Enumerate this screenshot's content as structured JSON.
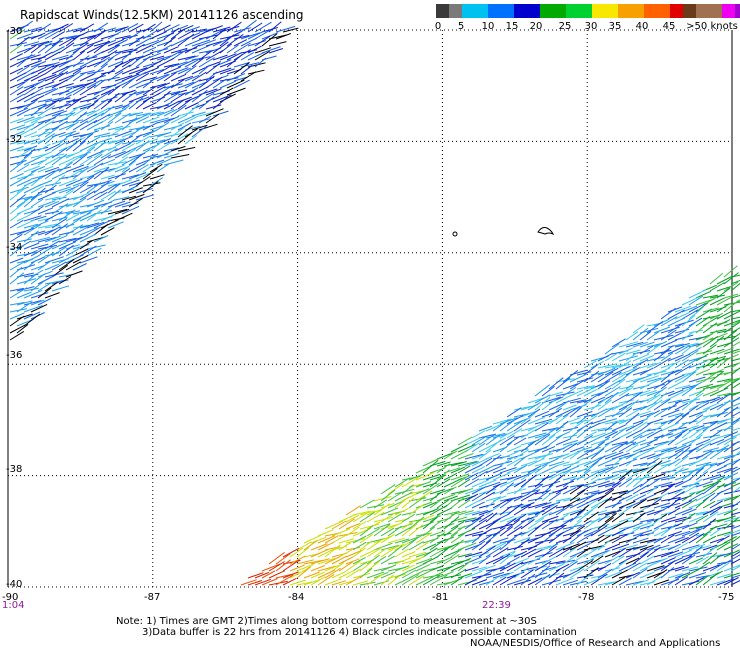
{
  "title": "Rapidscat Winds(12.5KM) 20141126 ascending",
  "colorbar": {
    "colors": [
      "#3a3a3a",
      "#7a7a7a",
      "#00c2f0",
      "#0070ff",
      "#0000cc",
      "#00aa00",
      "#00d030",
      "#f8e800",
      "#f8a000",
      "#ff6000",
      "#e00000",
      "#6a3a1a",
      "#a07050",
      "#f000f0",
      "#a000d0",
      "#6a0090"
    ],
    "labels": [
      "0",
      "5",
      "10",
      "15",
      "20",
      "25",
      "30",
      "35",
      "40",
      "45",
      ">50 knots"
    ]
  },
  "lat_labels": [
    "-30",
    "-32",
    "-34",
    "-36",
    "-38",
    "-40"
  ],
  "lon_labels": [
    "-90",
    "-87",
    "-84",
    "-81",
    "-78",
    "-75"
  ],
  "time_labels": [
    "1:04",
    "22:39"
  ],
  "notes": [
    "Note: 1) Times are GMT 2)Times along bottom correspond to measurement at ~30S",
    "3)Data buffer is 22 hrs from 20141126 4) Black circles indicate possible contamination",
    "NOAA/NESDIS/Office of Research and Applications"
  ],
  "map": {
    "lat_range": [
      -40,
      -30
    ],
    "lon_range": [
      -90,
      -75
    ],
    "grid": true,
    "land_color": "#000000",
    "wind_barb_palette": [
      "#000000",
      "#0b22c8",
      "#1560e8",
      "#1e9cf0",
      "#3cc8f0",
      "#00a020",
      "#40c040",
      "#c8e000",
      "#f0a000",
      "#f05000",
      "#d82000"
    ]
  }
}
